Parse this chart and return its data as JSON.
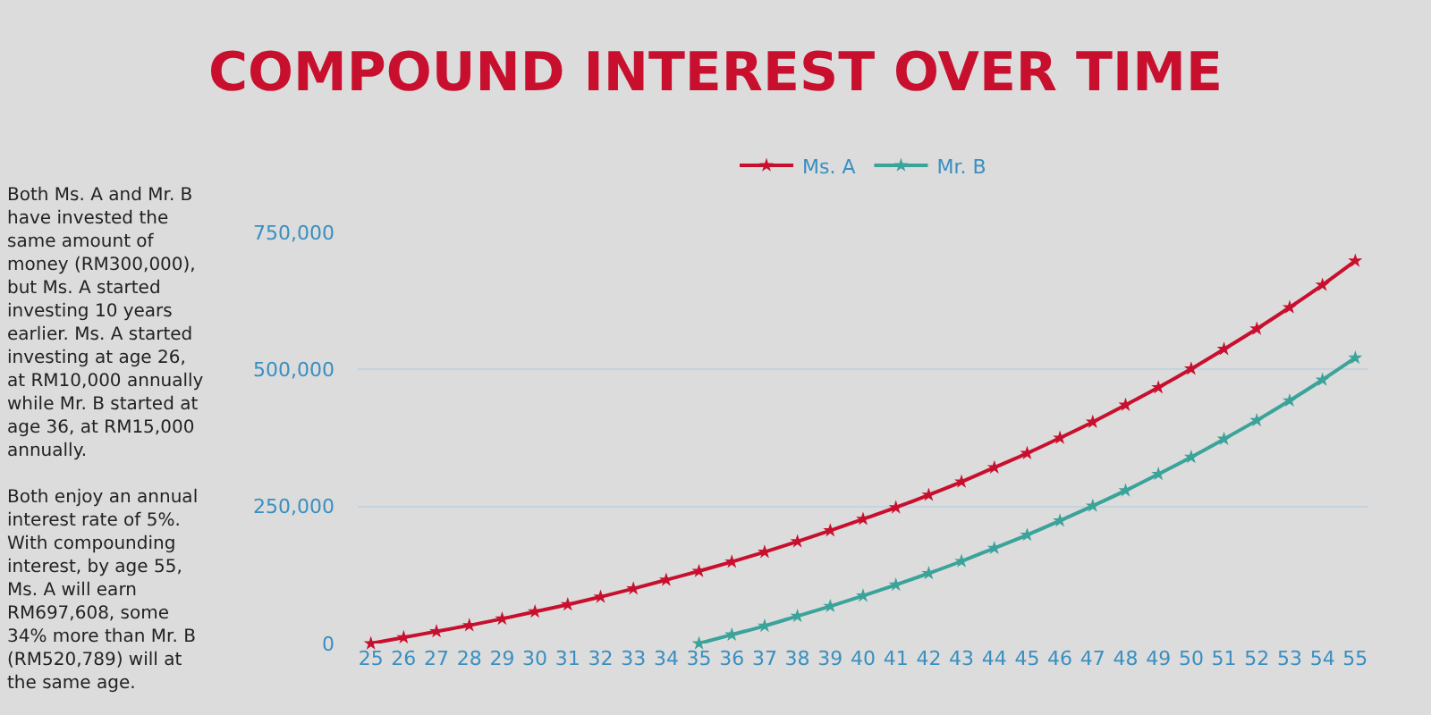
{
  "chart_data": {
    "type": "line",
    "title": "COMPOUND INTEREST OVER TIME",
    "categories": [
      "25",
      "26",
      "27",
      "28",
      "29",
      "30",
      "31",
      "32",
      "33",
      "34",
      "35",
      "36",
      "37",
      "38",
      "39",
      "40",
      "41",
      "42",
      "43",
      "44",
      "45",
      "46",
      "47",
      "48",
      "49",
      "50",
      "51",
      "52",
      "53",
      "54",
      "55"
    ],
    "series": [
      {
        "name": "Ms. A",
        "color": "#c8102e",
        "values": [
          0,
          11000,
          22000,
          33000,
          45000,
          58000,
          71000,
          85000,
          100000,
          116000,
          132000,
          149000,
          167000,
          186000,
          206000,
          227000,
          248000,
          271000,
          295000,
          321000,
          347000,
          375000,
          404000,
          435000,
          467000,
          501000,
          537000,
          574000,
          613000,
          654000,
          698000
        ]
      },
      {
        "name": "Mr. B",
        "color": "#3aa39a",
        "values": [
          null,
          null,
          null,
          null,
          null,
          null,
          null,
          null,
          null,
          null,
          0,
          16000,
          32000,
          50000,
          68000,
          87000,
          107000,
          128000,
          150000,
          174000,
          198000,
          224000,
          251000,
          279000,
          309000,
          340000,
          373000,
          407000,
          443000,
          481000,
          521000
        ]
      }
    ],
    "ylim": [
      0,
      750000
    ],
    "yticks": [
      0,
      {
        "value": 250000,
        "label": "250,000"
      },
      {
        "value": 500000,
        "label": "500,000"
      },
      {
        "value": 750000,
        "label": "750,000"
      }
    ],
    "grid": "y",
    "legend": "top",
    "marker": "star",
    "line_style": "solid",
    "annotations": [
      "Both Ms. A and Mr. B\nhave invested the\nsame amount of\nmoney (RM300,000),\nbut Ms. A started\ninvesting 10 years\nearlier. Ms. A started\ninvesting at age 26,\nat RM10,000 annually\nwhile Mr. B started at\nage 36, at RM15,000\nannually.\n\nBoth enjoy an annual\ninterest rate of 5%.\nWith compounding\ninterest, by age 55,\nMs. A will earn\nRM697,608, some\n34% more than Mr. B\n(RM520,789) will at\nthe same age."
    ]
  }
}
